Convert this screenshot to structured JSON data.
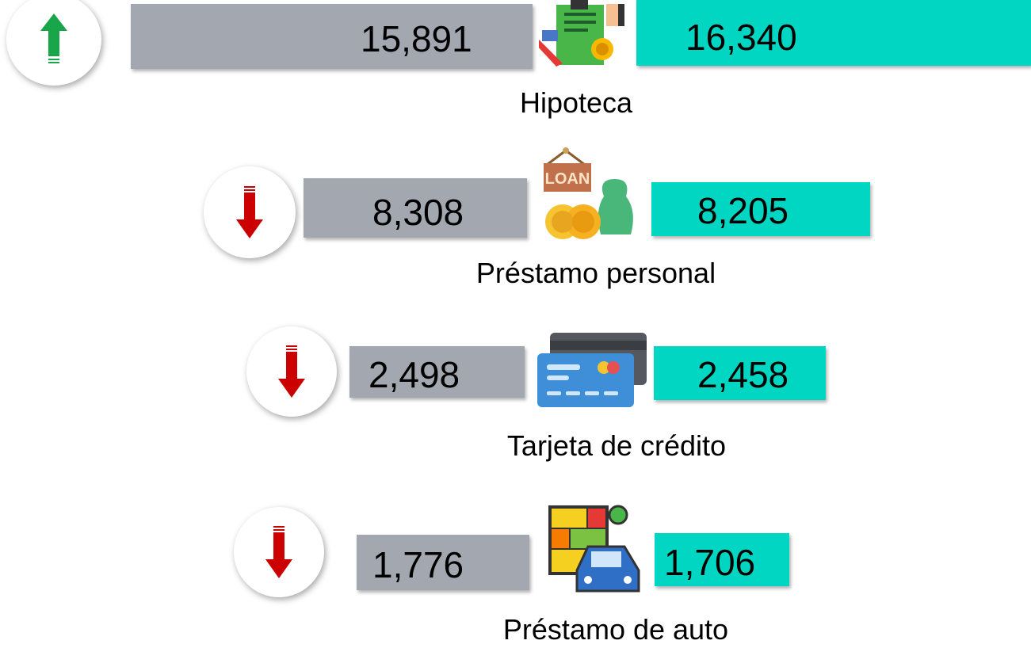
{
  "rows": [
    {
      "label": "Hipoteca",
      "before": "15,891",
      "after": "16,340"
    },
    {
      "label": "Préstamo personal",
      "before": "8,308",
      "after": "8,205"
    },
    {
      "label": "Tarjeta de crédito",
      "before": "2,498",
      "after": "2,458"
    },
    {
      "label": "Préstamo de auto",
      "before": "1,776",
      "after": "1,706"
    }
  ]
}
